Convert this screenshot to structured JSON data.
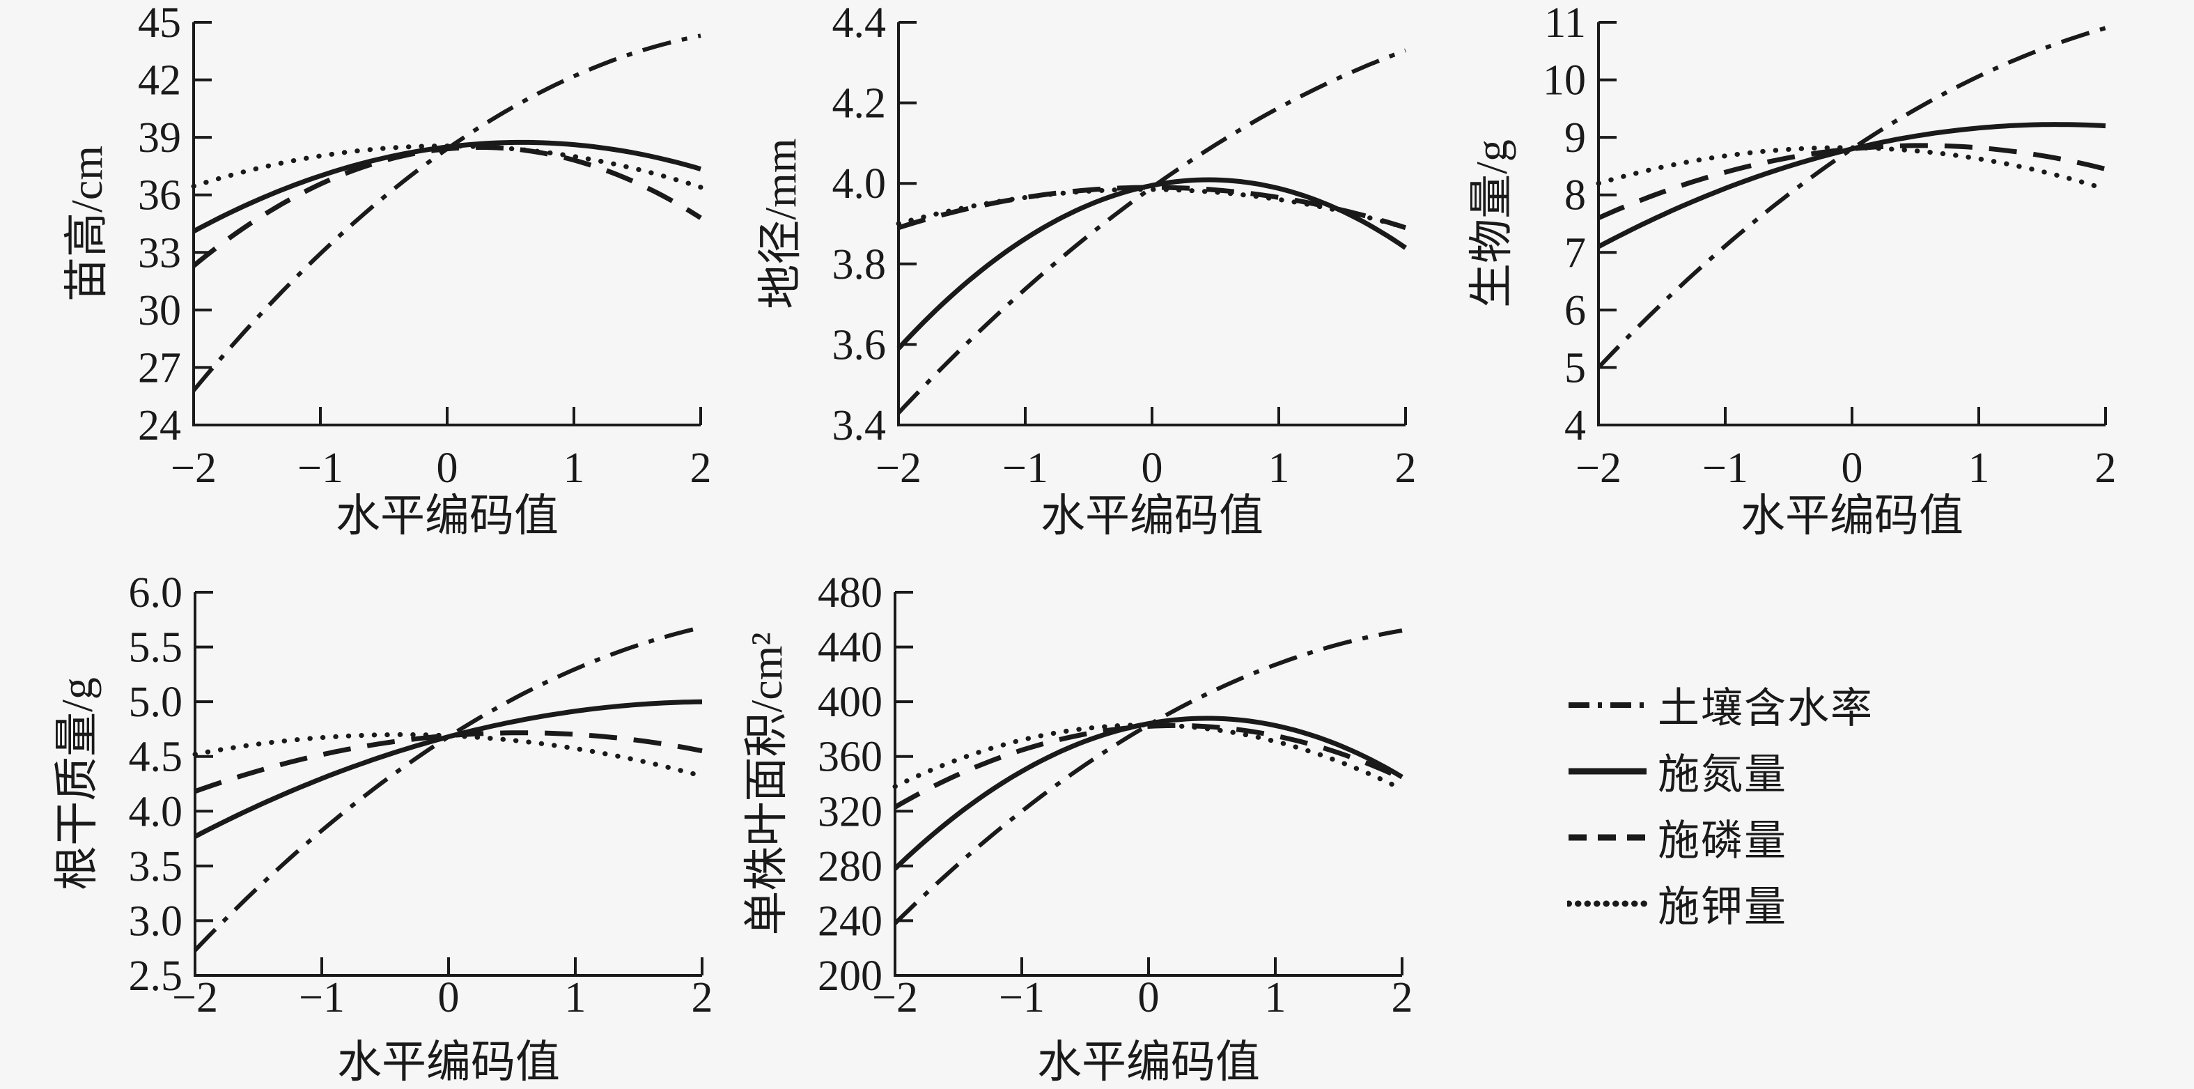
{
  "figure": {
    "background": "#f6f6f6",
    "line_color": "#1a1a1a",
    "x_axis_label": "水平编码值",
    "x_tick_values": [
      -2,
      -1,
      0,
      1,
      2
    ],
    "x_tick_labels": [
      "−2",
      "−1",
      "0",
      "1",
      "2"
    ],
    "grid": false,
    "legend_position": "bottom-right"
  },
  "legend": {
    "items": [
      {
        "label": "土壤含水率",
        "name": "soil-water",
        "line_style": "dash-dot",
        "dash": "42 16 8 16",
        "sample_dash": "30 12 6 12",
        "width": 6,
        "cap": "butt"
      },
      {
        "label": "施氮量",
        "name": "nitrogen",
        "line_style": "solid",
        "dash": "",
        "sample_dash": "",
        "width": 7,
        "cap": "butt"
      },
      {
        "label": "施磷量",
        "name": "phosphorus",
        "line_style": "dashed",
        "dash": "40 24",
        "sample_dash": "26 16",
        "width": 7,
        "cap": "butt"
      },
      {
        "label": "施钾量",
        "name": "potassium",
        "line_style": "dotted",
        "dash": "0.5 18",
        "sample_dash": "0.5 13",
        "width": 7,
        "cap": "round"
      }
    ]
  },
  "chart_data": [
    {
      "type": "line",
      "title": "",
      "ylabel": "苗高/cm",
      "xlabel": "水平编码值",
      "x": [
        -2,
        -1,
        0,
        1,
        2
      ],
      "ylim": [
        24,
        45
      ],
      "ytick_labels": [
        "24",
        "27",
        "30",
        "33",
        "36",
        "39",
        "42",
        "45"
      ],
      "series": [
        {
          "name": "土壤含水率",
          "values": [
            25.8,
            32.9,
            38.4,
            42.2,
            44.3
          ],
          "fit": [
            38.4,
            4.625,
            -0.8375
          ]
        },
        {
          "name": "施氮量",
          "values": [
            34.1,
            37.0,
            38.5,
            38.6,
            37.4
          ],
          "fit": [
            38.5,
            0.8125,
            -0.694
          ]
        },
        {
          "name": "施磷量",
          "values": [
            32.3,
            36.6,
            38.4,
            37.8,
            34.8
          ],
          "fit": [
            38.4,
            0.625,
            -1.2125
          ]
        },
        {
          "name": "施钾量",
          "values": [
            36.5,
            38.0,
            38.6,
            38.0,
            36.4
          ],
          "fit": [
            38.55,
            -0.0125,
            -0.531
          ]
        }
      ]
    },
    {
      "type": "line",
      "title": "",
      "ylabel": "地径/mm",
      "xlabel": "水平编码值",
      "x": [
        -2,
        -1,
        0,
        1,
        2
      ],
      "ylim": [
        3.4,
        4.4
      ],
      "ytick_labels": [
        "3.4",
        "3.6",
        "3.8",
        "4.0",
        "4.2",
        "4.4"
      ],
      "series": [
        {
          "name": "土壤含水率",
          "values": [
            3.43,
            3.74,
            3.99,
            4.19,
            4.33
          ],
          "fit": [
            3.99,
            0.225,
            -0.0275
          ]
        },
        {
          "name": "施氮量",
          "values": [
            3.59,
            3.86,
            4.0,
            3.99,
            3.84
          ],
          "fit": [
            3.995,
            0.0625,
            -0.07
          ]
        },
        {
          "name": "施磷量",
          "values": [
            3.89,
            3.97,
            3.99,
            3.97,
            3.89
          ],
          "fit": [
            3.99,
            0.0,
            -0.025
          ]
        },
        {
          "name": "施钾量",
          "values": [
            3.9,
            3.96,
            3.99,
            3.96,
            3.89
          ],
          "fit": [
            3.985,
            -0.0025,
            -0.0225
          ]
        }
      ]
    },
    {
      "type": "line",
      "title": "",
      "ylabel": "生物量/g",
      "xlabel": "水平编码值",
      "x": [
        -2,
        -1,
        0,
        1,
        2
      ],
      "ylim": [
        4,
        11
      ],
      "ytick_labels": [
        "4",
        "5",
        "6",
        "7",
        "8",
        "9",
        "10",
        "11"
      ],
      "series": [
        {
          "name": "土壤含水率",
          "values": [
            5.0,
            7.1,
            8.8,
            10.1,
            10.9
          ],
          "fit": [
            8.8,
            1.475,
            -0.2125
          ]
        },
        {
          "name": "施氮量",
          "values": [
            7.1,
            8.1,
            8.8,
            9.2,
            9.2
          ],
          "fit": [
            8.8,
            0.525,
            -0.1625
          ]
        },
        {
          "name": "施磷量",
          "values": [
            7.6,
            8.4,
            8.8,
            8.8,
            8.5
          ],
          "fit": [
            8.8,
            0.2125,
            -0.194
          ]
        },
        {
          "name": "施钾量",
          "values": [
            8.2,
            8.7,
            8.8,
            8.6,
            8.1
          ],
          "fit": [
            8.82,
            -0.025,
            -0.1675
          ]
        }
      ]
    },
    {
      "type": "line",
      "title": "",
      "ylabel": "根干质量/g",
      "xlabel": "水平编码值",
      "x": [
        -2,
        -1,
        0,
        1,
        2
      ],
      "ylim": [
        2.5,
        6.0
      ],
      "ytick_labels": [
        "2.5",
        "3.0",
        "3.5",
        "4.0",
        "4.5",
        "5.0",
        "5.5",
        "6.0"
      ],
      "series": [
        {
          "name": "土壤含水率",
          "values": [
            2.73,
            3.82,
            4.68,
            5.3,
            5.68
          ],
          "fit": [
            4.68,
            0.7375,
            -0.119
          ]
        },
        {
          "name": "施氮量",
          "values": [
            3.77,
            4.3,
            4.68,
            4.91,
            5.0
          ],
          "fit": [
            4.68,
            0.3075,
            -0.074
          ]
        },
        {
          "name": "施磷量",
          "values": [
            4.18,
            4.52,
            4.69,
            4.7,
            4.55
          ],
          "fit": [
            4.69,
            0.0925,
            -0.081
          ]
        },
        {
          "name": "施钾量",
          "values": [
            4.52,
            4.67,
            4.69,
            4.57,
            4.32
          ],
          "fit": [
            4.69,
            -0.05,
            -0.0675
          ]
        }
      ]
    },
    {
      "type": "line",
      "title": "",
      "ylabel": "单株叶面积/cm²",
      "xlabel": "水平编码值",
      "x": [
        -2,
        -1,
        0,
        1,
        2
      ],
      "ylim": [
        200,
        480
      ],
      "ytick_labels": [
        "200",
        "240",
        "280",
        "320",
        "360",
        "400",
        "440",
        "480"
      ],
      "series": [
        {
          "name": "土壤含水率",
          "values": [
            238,
            320,
            383,
            427,
            452
          ],
          "fit": [
            383,
            53.5,
            -9.5
          ]
        },
        {
          "name": "施氮量",
          "values": [
            278,
            349,
            384,
            383,
            345
          ],
          "fit": [
            384,
            16.75,
            -18.125
          ]
        },
        {
          "name": "施磷量",
          "values": [
            323,
            365,
            382,
            375,
            344
          ],
          "fit": [
            382,
            5.25,
            -12.125
          ]
        },
        {
          "name": "施钾量",
          "values": [
            338,
            372,
            383,
            371,
            336
          ],
          "fit": [
            383,
            -0.5,
            -11.5
          ]
        }
      ]
    }
  ]
}
